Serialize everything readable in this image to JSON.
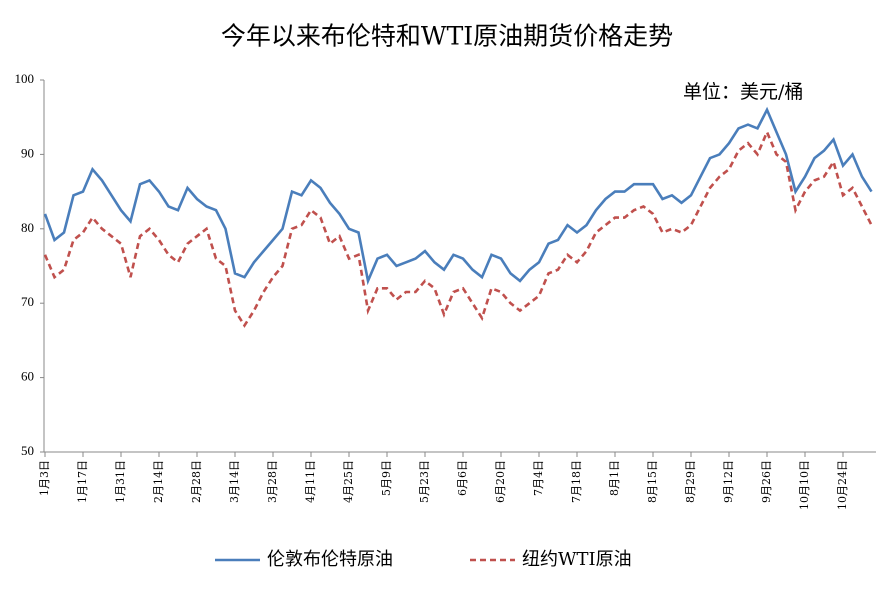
{
  "chart_data": {
    "type": "line",
    "title": "今年以来布伦特和WTI原油期货价格走势",
    "unit_label": "单位：美元/桶",
    "categories": [
      "1月3日",
      null,
      null,
      null,
      "1月17日",
      null,
      null,
      null,
      "1月31日",
      null,
      null,
      null,
      "2月14日",
      null,
      null,
      null,
      "2月28日",
      null,
      null,
      null,
      "3月14日",
      null,
      null,
      null,
      "3月28日",
      null,
      null,
      null,
      "4月11日",
      null,
      null,
      null,
      "4月25日",
      null,
      null,
      null,
      "5月9日",
      null,
      null,
      null,
      "5月23日",
      null,
      null,
      null,
      "6月6日",
      null,
      null,
      null,
      "6月20日",
      null,
      null,
      null,
      "7月4日",
      null,
      null,
      null,
      "7月18日",
      null,
      null,
      null,
      "8月1日",
      null,
      null,
      null,
      "8月15日",
      null,
      null,
      null,
      "8月29日",
      null,
      null,
      null,
      "9月12日",
      null,
      null,
      null,
      "9月26日",
      null,
      null,
      null,
      "10月10日",
      null,
      null,
      null,
      "10月24日",
      null,
      null,
      null
    ],
    "series": [
      {
        "name": "伦敦布伦特原油",
        "color": "#4a7ebb",
        "dash": false,
        "values": [
          82,
          78.5,
          79.5,
          84.5,
          85,
          88,
          86.5,
          84.5,
          82.5,
          81,
          86,
          86.5,
          85,
          83,
          82.5,
          85.5,
          84,
          83,
          82.5,
          80,
          74,
          73.5,
          75.5,
          77,
          78.5,
          80,
          85,
          84.5,
          86.5,
          85.5,
          83.5,
          82,
          80,
          79.5,
          73,
          76,
          76.5,
          75,
          75.5,
          76,
          77,
          75.5,
          74.5,
          76.5,
          76,
          74.5,
          73.5,
          76.5,
          76,
          74,
          73,
          74.5,
          75.5,
          78,
          78.5,
          80.5,
          79.5,
          80.5,
          82.5,
          84,
          85,
          85,
          86,
          86,
          86,
          84,
          84.5,
          83.5,
          84.5,
          87,
          89.5,
          90,
          91.5,
          93.5,
          94,
          93.5,
          96,
          93,
          90,
          85,
          87,
          89.5,
          90.5,
          92,
          88.5,
          90,
          87,
          85
        ]
      },
      {
        "name": "纽约WTI原油",
        "color": "#c0504d",
        "dash": true,
        "values": [
          76.5,
          73.5,
          74.5,
          78.5,
          79.5,
          81.5,
          80,
          79,
          78,
          73.5,
          79,
          80,
          78.5,
          76.5,
          75.5,
          78,
          79,
          80,
          76,
          75,
          69,
          67,
          69,
          71.5,
          73.5,
          75,
          80,
          80.5,
          82.5,
          81.5,
          78,
          79,
          76,
          76.5,
          69,
          72,
          72,
          70.5,
          71.5,
          71.5,
          73,
          72,
          68.5,
          71.5,
          72,
          70,
          68,
          72,
          71.5,
          70,
          69,
          70,
          71,
          74,
          74.5,
          76.5,
          75.5,
          77,
          79.5,
          80.5,
          81.5,
          81.5,
          82.5,
          83,
          82,
          79.5,
          80,
          79.5,
          80.5,
          83,
          85.5,
          87,
          88,
          90.5,
          91.5,
          90,
          93,
          90,
          89,
          82.5,
          85,
          86.5,
          87,
          89,
          84.5,
          85.5,
          83,
          80.5
        ]
      }
    ],
    "ylim": [
      50,
      100
    ],
    "yticks": [
      50,
      60,
      70,
      80,
      90,
      100
    ],
    "grid": false,
    "legend": "bottom"
  }
}
